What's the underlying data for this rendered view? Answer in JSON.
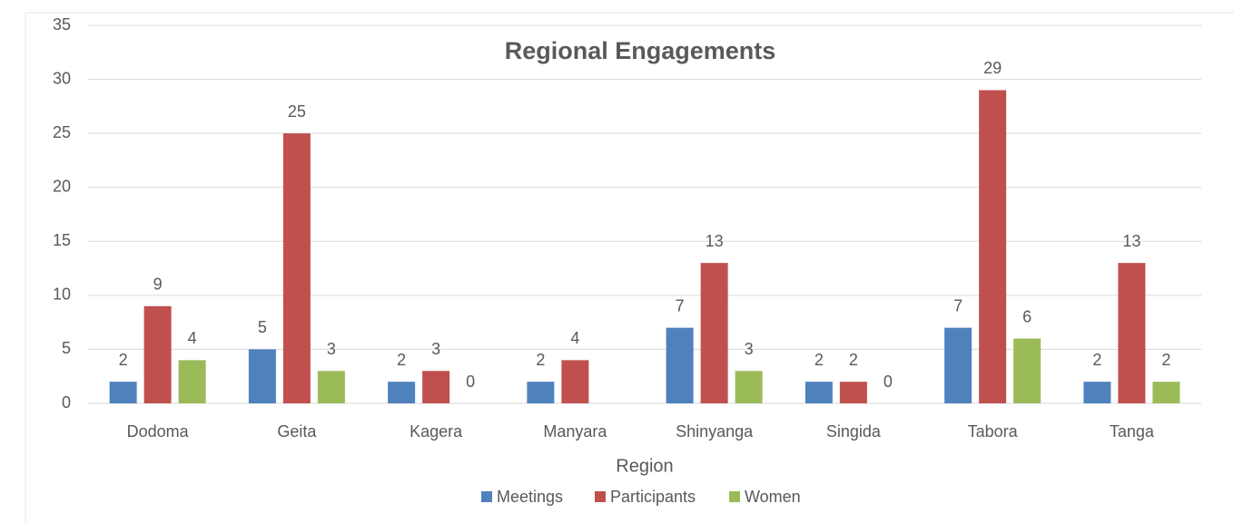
{
  "chart_data": {
    "type": "bar",
    "title": "Regional Engagements",
    "x_label": "Region",
    "categories": [
      "Dodoma",
      "Geita",
      "Kagera",
      "Manyara",
      "Shinyanga",
      "Singida",
      "Tabora",
      "Tanga"
    ],
    "series": [
      {
        "name": "Meetings",
        "color": "#4f81bd",
        "values": [
          2,
          5,
          2,
          2,
          7,
          2,
          7,
          2
        ]
      },
      {
        "name": "Participants",
        "color": "#c0504d",
        "values": [
          9,
          25,
          3,
          4,
          13,
          2,
          29,
          13
        ]
      },
      {
        "name": "Women",
        "color": "#9bbb59",
        "values": [
          4,
          3,
          0,
          null,
          3,
          0,
          6,
          2
        ]
      }
    ],
    "ylim": [
      0,
      35
    ],
    "yticks": [
      0,
      5,
      10,
      15,
      20,
      25,
      30,
      35
    ],
    "grid": true,
    "legend": "bottom"
  }
}
